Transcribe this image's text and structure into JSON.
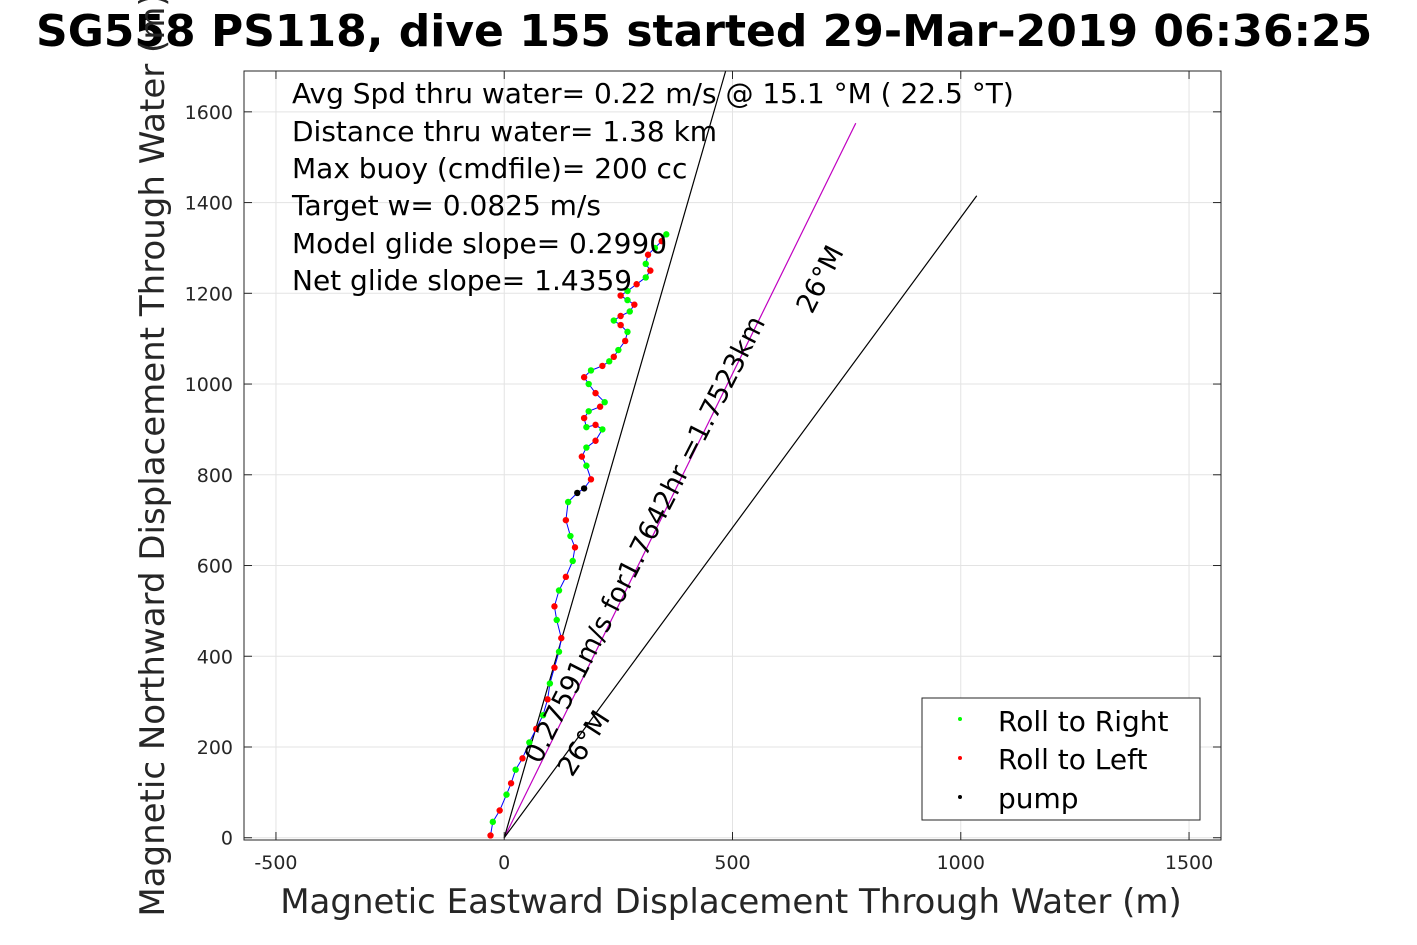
{
  "chart_data": {
    "type": "scatter",
    "title": "SG558 PS118, dive 155 started 29-Mar-2019 06:36:25",
    "xlabel": "Magnetic Eastward Displacement Through Water (m)",
    "ylabel": "Magnetic Northward Displacement Through Water (m)",
    "xlim": [
      -570,
      1570
    ],
    "ylim": [
      -5,
      1690
    ],
    "xticks": [
      -500,
      0,
      500,
      1000,
      1500
    ],
    "yticks": [
      0,
      200,
      400,
      600,
      800,
      1000,
      1200,
      1400,
      1600
    ],
    "grid": true,
    "legend_position": "bottom-right",
    "stats": [
      "Avg Spd thru water=  0.22 m/s @  15.1 °M ( 22.5 °T)",
      "Distance thru water=  1.38 km",
      "Max buoy (cmdfile)= 200 cc",
      "Target w= 0.0825 m/s",
      "Model glide slope= 0.2990",
      "Net glide slope= 1.4359"
    ],
    "annotations": {
      "course_heading": "26°M",
      "speed_line": "0.27591m/s for1.7642hr =1.7523km",
      "target_heading": "26°M"
    },
    "reference_lines": [
      {
        "name": "course",
        "x": [
          0,
          770
        ],
        "y": [
          0,
          1575
        ],
        "color": "#c000c0"
      },
      {
        "name": "left bound",
        "x": [
          0,
          485
        ],
        "y": [
          0,
          1690
        ],
        "color": "#000000"
      },
      {
        "name": "right bound",
        "x": [
          0,
          1035
        ],
        "y": [
          0,
          1415
        ],
        "color": "#000000"
      }
    ],
    "track": {
      "name": "track",
      "color": "#0000ff",
      "x": [
        -30,
        -25,
        -10,
        5,
        15,
        25,
        40,
        55,
        70,
        85,
        95,
        100,
        110,
        120,
        125,
        115,
        110,
        120,
        135,
        150,
        155,
        145,
        135,
        140,
        160,
        175,
        190,
        180,
        170,
        180,
        200,
        215,
        200,
        180,
        175,
        185,
        210,
        220,
        200,
        185,
        175,
        190,
        215,
        230,
        240,
        250,
        265,
        270,
        255,
        240,
        255,
        275,
        285,
        270,
        255,
        270,
        290,
        310,
        320,
        310,
        315,
        330,
        345,
        355
      ],
      "y": [
        5,
        35,
        60,
        95,
        120,
        150,
        175,
        210,
        240,
        270,
        305,
        340,
        375,
        410,
        440,
        480,
        510,
        545,
        575,
        610,
        640,
        665,
        700,
        740,
        760,
        770,
        790,
        820,
        840,
        860,
        875,
        900,
        910,
        905,
        925,
        940,
        950,
        960,
        980,
        1000,
        1015,
        1030,
        1040,
        1050,
        1060,
        1075,
        1095,
        1115,
        1130,
        1140,
        1150,
        1160,
        1175,
        1185,
        1195,
        1205,
        1220,
        1235,
        1250,
        1265,
        1285,
        1300,
        1315,
        1330
      ]
    },
    "series": [
      {
        "name": "Roll to Right",
        "color": "#00ff00"
      },
      {
        "name": "Roll to Left",
        "color": "#ff0000"
      },
      {
        "name": "pump",
        "color": "#000000"
      }
    ]
  }
}
